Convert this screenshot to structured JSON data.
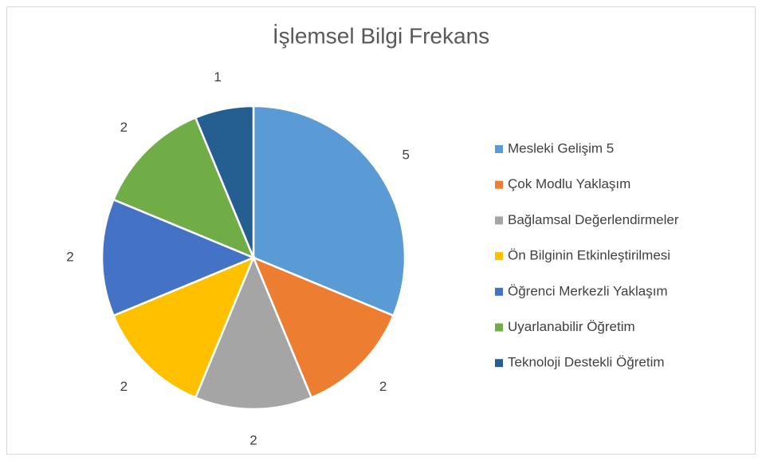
{
  "chart_data": {
    "type": "pie",
    "title": "İşlemsel Bilgi Frekans",
    "categories": [
      "Mesleki Gelişim 5",
      "Çok Modlu Yaklaşım",
      "Bağlamsal Değerlendirmeler",
      "Ön Bilginin Etkinleştirilmesi",
      "Öğrenci Merkezli Yaklaşım",
      "Uyarlanabilir Öğretim",
      "Teknoloji Destekli Öğretim"
    ],
    "values": [
      5,
      2,
      2,
      2,
      2,
      2,
      1
    ],
    "colors": [
      "#5b9bd5",
      "#ed7d31",
      "#a5a5a5",
      "#ffc000",
      "#4472c4",
      "#70ad47",
      "#255e91"
    ],
    "legend": "right"
  }
}
